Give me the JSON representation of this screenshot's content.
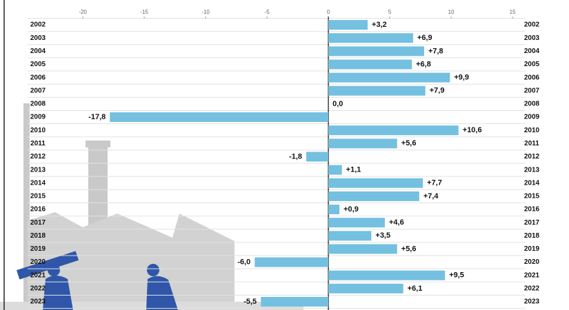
{
  "chart_data": {
    "type": "barh",
    "categories": [
      "2002",
      "2003",
      "2004",
      "2005",
      "2006",
      "2007",
      "2008",
      "2009",
      "2010",
      "2011",
      "2012",
      "2013",
      "2014",
      "2015",
      "2016",
      "2017",
      "2018",
      "2019",
      "2020",
      "2021",
      "2022",
      "2023"
    ],
    "values": [
      3.2,
      6.9,
      7.8,
      6.8,
      9.9,
      7.9,
      0.0,
      -17.8,
      10.6,
      5.6,
      -1.8,
      1.1,
      7.7,
      7.4,
      0.9,
      4.6,
      3.5,
      5.6,
      -6.0,
      9.5,
      6.1,
      -5.5
    ],
    "value_labels": [
      "+3,2",
      "+6,9",
      "+7,8",
      "+6,8",
      "+9,9",
      "+7,9",
      "0,0",
      "-17,8",
      "+10,6",
      "+5,6",
      "-1,8",
      "+1,1",
      "+7,7",
      "+7,4",
      "+0,9",
      "+4,6",
      "+3,5",
      "+5,6",
      "-6,0",
      "+9,5",
      "+6,1",
      "-5,5"
    ],
    "color": "#74c0e0",
    "xlim": [
      -24.5,
      15.5
    ],
    "xticks": [
      -20,
      -15,
      -10,
      -5,
      0,
      5,
      10,
      15
    ]
  }
}
